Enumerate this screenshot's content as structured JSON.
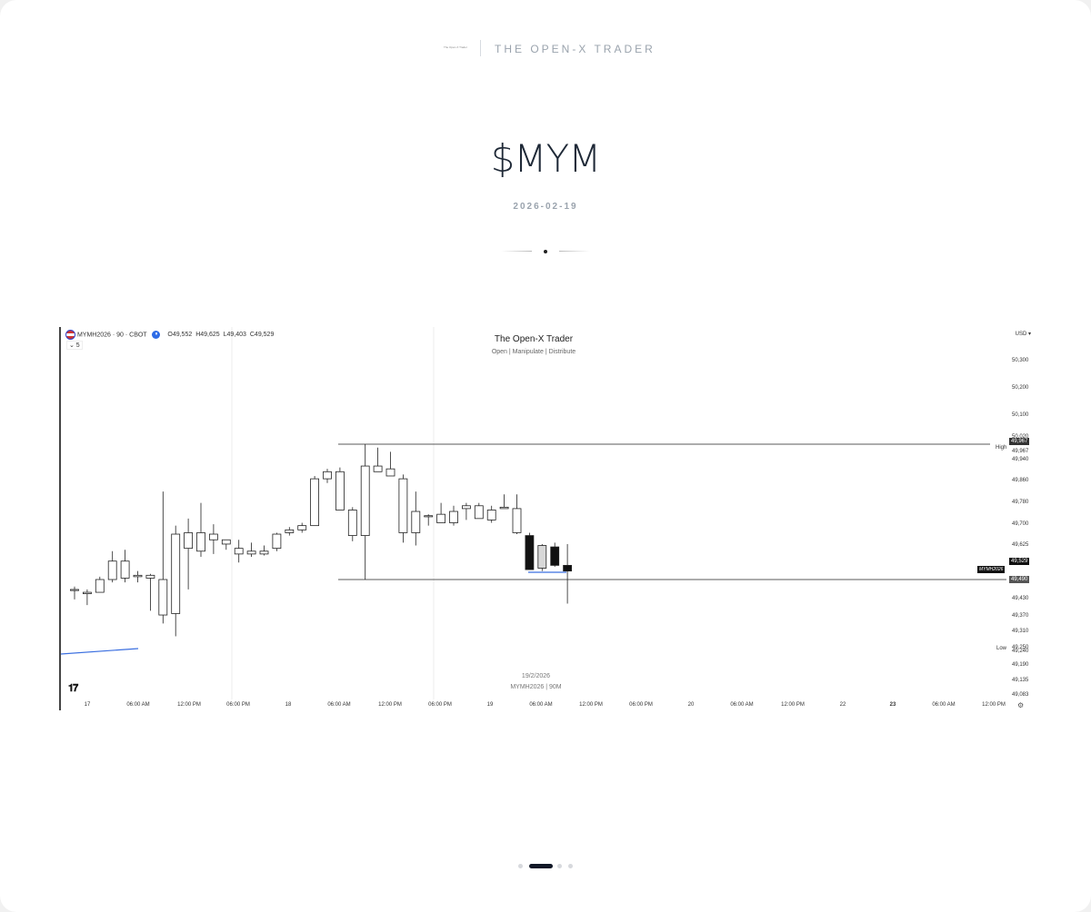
{
  "brand": {
    "mini_text": "The Open-X Trader",
    "name": "THE OPEN-X TRADER"
  },
  "ticker": "$MYM",
  "date": "2026-02-19",
  "chart": {
    "legend": {
      "symbol": "MYMH2026 · 90 · CBOT",
      "open": "O49,552",
      "high": "H49,625",
      "low": "L49,403",
      "close": "C49,529"
    },
    "collapse_label": "⌄ 5",
    "watermark_title": "The Open-X Trader",
    "watermark_subtitle": "Open | Manipulate | Distribute",
    "currency": "USD ▾",
    "annotation_date": "19/2/2026",
    "annotation_symbol": "MYMH2026 | 90M",
    "level_high": "High",
    "level_low": "Low",
    "symbol_tag": "MYMH2026",
    "price_tags": {
      "high": "49,967",
      "last": "49,529",
      "low": "49,490"
    },
    "settings_icon": "gear-icon",
    "logo": "TV"
  },
  "pager": {
    "count": 4,
    "active": 1
  },
  "chart_data": {
    "type": "candlestick",
    "title": "The Open-X Trader",
    "subtitle": "Open | Manipulate | Distribute",
    "ylim": [
      49050,
      50400
    ],
    "y_ticks": [
      "50,300",
      "50,200",
      "50,100",
      "50,020",
      "49,967",
      "49,940",
      "49,860",
      "49,780",
      "49,700",
      "49,625",
      "49,529",
      "49,490",
      "49,430",
      "49,370",
      "49,310",
      "49,250",
      "49,240",
      "49,190",
      "49,135",
      "49,083"
    ],
    "x_ticks": [
      "17",
      "06:00 AM",
      "12:00 PM",
      "06:00 PM",
      "18",
      "06:00 AM",
      "12:00 PM",
      "06:00 PM",
      "19",
      "06:00 AM",
      "12:00 PM",
      "06:00 PM",
      "20",
      "06:00 AM",
      "12:00 PM",
      "22",
      "23",
      "06:00 AM",
      "12:00 PM"
    ],
    "candles": [
      {
        "o": 49455,
        "h": 49465,
        "l": 49420,
        "c": 49455
      },
      {
        "o": 49440,
        "h": 49455,
        "l": 49400,
        "c": 49445
      },
      {
        "o": 49445,
        "h": 49500,
        "l": 49445,
        "c": 49490
      },
      {
        "o": 49490,
        "h": 49590,
        "l": 49480,
        "c": 49555
      },
      {
        "o": 49555,
        "h": 49595,
        "l": 49480,
        "c": 49495
      },
      {
        "o": 49500,
        "h": 49520,
        "l": 49480,
        "c": 49505
      },
      {
        "o": 49505,
        "h": 49510,
        "l": 49380,
        "c": 49495
      },
      {
        "o": 49490,
        "h": 49800,
        "l": 49335,
        "c": 49365
      },
      {
        "o": 49370,
        "h": 49680,
        "l": 49290,
        "c": 49650
      },
      {
        "o": 49600,
        "h": 49705,
        "l": 49455,
        "c": 49655
      },
      {
        "o": 49655,
        "h": 49760,
        "l": 49570,
        "c": 49590
      },
      {
        "o": 49650,
        "h": 49685,
        "l": 49580,
        "c": 49630
      },
      {
        "o": 49630,
        "h": 49630,
        "l": 49595,
        "c": 49615
      },
      {
        "o": 49580,
        "h": 49630,
        "l": 49550,
        "c": 49600
      },
      {
        "o": 49580,
        "h": 49620,
        "l": 49570,
        "c": 49590
      },
      {
        "o": 49580,
        "h": 49610,
        "l": 49575,
        "c": 49590
      },
      {
        "o": 49600,
        "h": 49655,
        "l": 49590,
        "c": 49650
      },
      {
        "o": 49655,
        "h": 49675,
        "l": 49645,
        "c": 49665
      },
      {
        "o": 49665,
        "h": 49690,
        "l": 49655,
        "c": 49680
      },
      {
        "o": 49680,
        "h": 49855,
        "l": 49680,
        "c": 49845
      },
      {
        "o": 49845,
        "h": 49880,
        "l": 49830,
        "c": 49870
      },
      {
        "o": 49870,
        "h": 49885,
        "l": 49735,
        "c": 49735
      },
      {
        "o": 49735,
        "h": 49745,
        "l": 49625,
        "c": 49645
      },
      {
        "o": 49645,
        "h": 49967,
        "l": 49490,
        "c": 49890
      },
      {
        "o": 49890,
        "h": 49955,
        "l": 49875,
        "c": 49870
      },
      {
        "o": 49880,
        "h": 49940,
        "l": 49860,
        "c": 49855
      },
      {
        "o": 49845,
        "h": 49860,
        "l": 49620,
        "c": 49655
      },
      {
        "o": 49730,
        "h": 49800,
        "l": 49610,
        "c": 49655
      },
      {
        "o": 49715,
        "h": 49720,
        "l": 49680,
        "c": 49715
      },
      {
        "o": 49720,
        "h": 49760,
        "l": 49690,
        "c": 49690
      },
      {
        "o": 49690,
        "h": 49750,
        "l": 49680,
        "c": 49730
      },
      {
        "o": 49740,
        "h": 49760,
        "l": 49700,
        "c": 49750
      },
      {
        "o": 49750,
        "h": 49760,
        "l": 49705,
        "c": 49705
      },
      {
        "o": 49735,
        "h": 49750,
        "l": 49690,
        "c": 49700
      },
      {
        "o": 49740,
        "h": 49790,
        "l": 49740,
        "c": 49745
      },
      {
        "o": 49740,
        "h": 49790,
        "l": 49650,
        "c": 49655
      },
      {
        "o": 49645,
        "h": 49655,
        "l": 49525,
        "c": 49525
      },
      {
        "o": 49530,
        "h": 49615,
        "l": 49520,
        "c": 49610
      },
      {
        "o": 49605,
        "h": 49620,
        "l": 49535,
        "c": 49540
      },
      {
        "o": 49540,
        "h": 49615,
        "l": 49405,
        "c": 49520
      }
    ],
    "levels": {
      "high": 49967,
      "low": 49490
    }
  }
}
